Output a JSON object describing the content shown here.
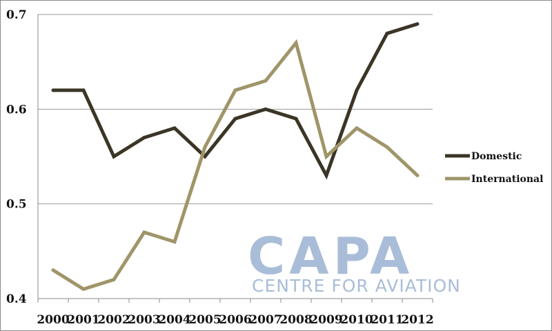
{
  "chart_data": {
    "type": "line",
    "title": "",
    "xlabel": "",
    "ylabel": "",
    "categories": [
      "2000",
      "2001",
      "2002",
      "2003",
      "2004",
      "2005",
      "2006",
      "2007",
      "2008",
      "2009",
      "2010",
      "2011",
      "2012"
    ],
    "ylim": [
      0.4,
      0.7
    ],
    "yticks": [
      "0.4",
      "0.5",
      "0.6",
      "0.7"
    ],
    "grid": "horizontal",
    "legend_position": "right",
    "series": [
      {
        "name": "Domestic",
        "color": "#3b3526",
        "values": [
          0.62,
          0.62,
          0.55,
          0.57,
          0.58,
          0.55,
          0.59,
          0.6,
          0.59,
          0.53,
          0.62,
          0.68,
          0.69
        ]
      },
      {
        "name": "International",
        "color": "#a09569",
        "values": [
          0.43,
          0.41,
          0.42,
          0.47,
          0.46,
          0.56,
          0.62,
          0.63,
          0.67,
          0.55,
          0.58,
          0.56,
          0.53
        ]
      }
    ]
  },
  "watermark": {
    "logo_text": "CAPA",
    "subtitle": "CENTRE FOR AVIATION",
    "color": "#a9bdd8"
  }
}
